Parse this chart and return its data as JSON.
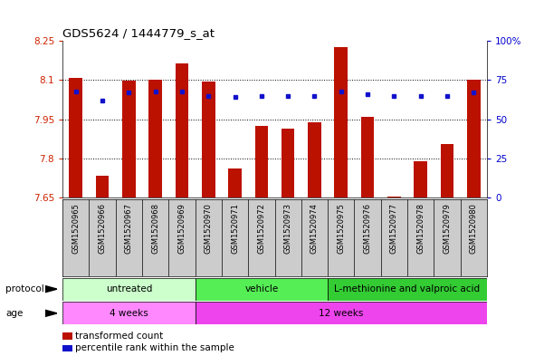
{
  "title": "GDS5624 / 1444779_s_at",
  "samples": [
    "GSM1520965",
    "GSM1520966",
    "GSM1520967",
    "GSM1520968",
    "GSM1520969",
    "GSM1520970",
    "GSM1520971",
    "GSM1520972",
    "GSM1520973",
    "GSM1520974",
    "GSM1520975",
    "GSM1520976",
    "GSM1520977",
    "GSM1520978",
    "GSM1520979",
    "GSM1520980"
  ],
  "transformed_count": [
    8.107,
    7.735,
    8.097,
    8.103,
    8.165,
    8.093,
    7.762,
    7.925,
    7.915,
    7.937,
    8.225,
    7.96,
    7.655,
    7.79,
    7.855,
    8.103
  ],
  "percentile_rank": [
    68,
    62,
    67,
    68,
    68,
    65,
    64,
    65,
    65,
    65,
    68,
    66,
    65,
    65,
    65,
    67
  ],
  "ymin": 7.65,
  "ymax": 8.25,
  "yticks": [
    7.65,
    7.8,
    7.95,
    8.1,
    8.25
  ],
  "ytick_labels": [
    "7.65",
    "7.8",
    "7.95",
    "8.1",
    "8.25"
  ],
  "y2min": 0,
  "y2max": 100,
  "y2ticks": [
    0,
    25,
    50,
    75,
    100
  ],
  "y2tick_labels": [
    "0",
    "25",
    "50",
    "75",
    "100%"
  ],
  "bar_color": "#bb1100",
  "dot_color": "#1111cc",
  "protocol_groups": [
    {
      "label": "untreated",
      "start": 0,
      "end": 4,
      "color": "#ccffcc"
    },
    {
      "label": "vehicle",
      "start": 5,
      "end": 9,
      "color": "#55ee55"
    },
    {
      "label": "L-methionine and valproic acid",
      "start": 10,
      "end": 15,
      "color": "#33cc33"
    }
  ],
  "age_groups": [
    {
      "label": "4 weeks",
      "start": 0,
      "end": 4,
      "color": "#ff88ff"
    },
    {
      "label": "12 weeks",
      "start": 5,
      "end": 15,
      "color": "#ee44ee"
    }
  ],
  "protocol_label": "protocol",
  "age_label": "age",
  "legend_items": [
    {
      "color": "#bb1100",
      "label": "transformed count"
    },
    {
      "color": "#1111cc",
      "label": "percentile rank within the sample"
    }
  ],
  "tick_color_left": "#cc2200",
  "tick_color_right": "#0000cc",
  "xlabels_bg": "#cccccc",
  "plot_bg": "#ffffff",
  "bar_width": 0.5
}
